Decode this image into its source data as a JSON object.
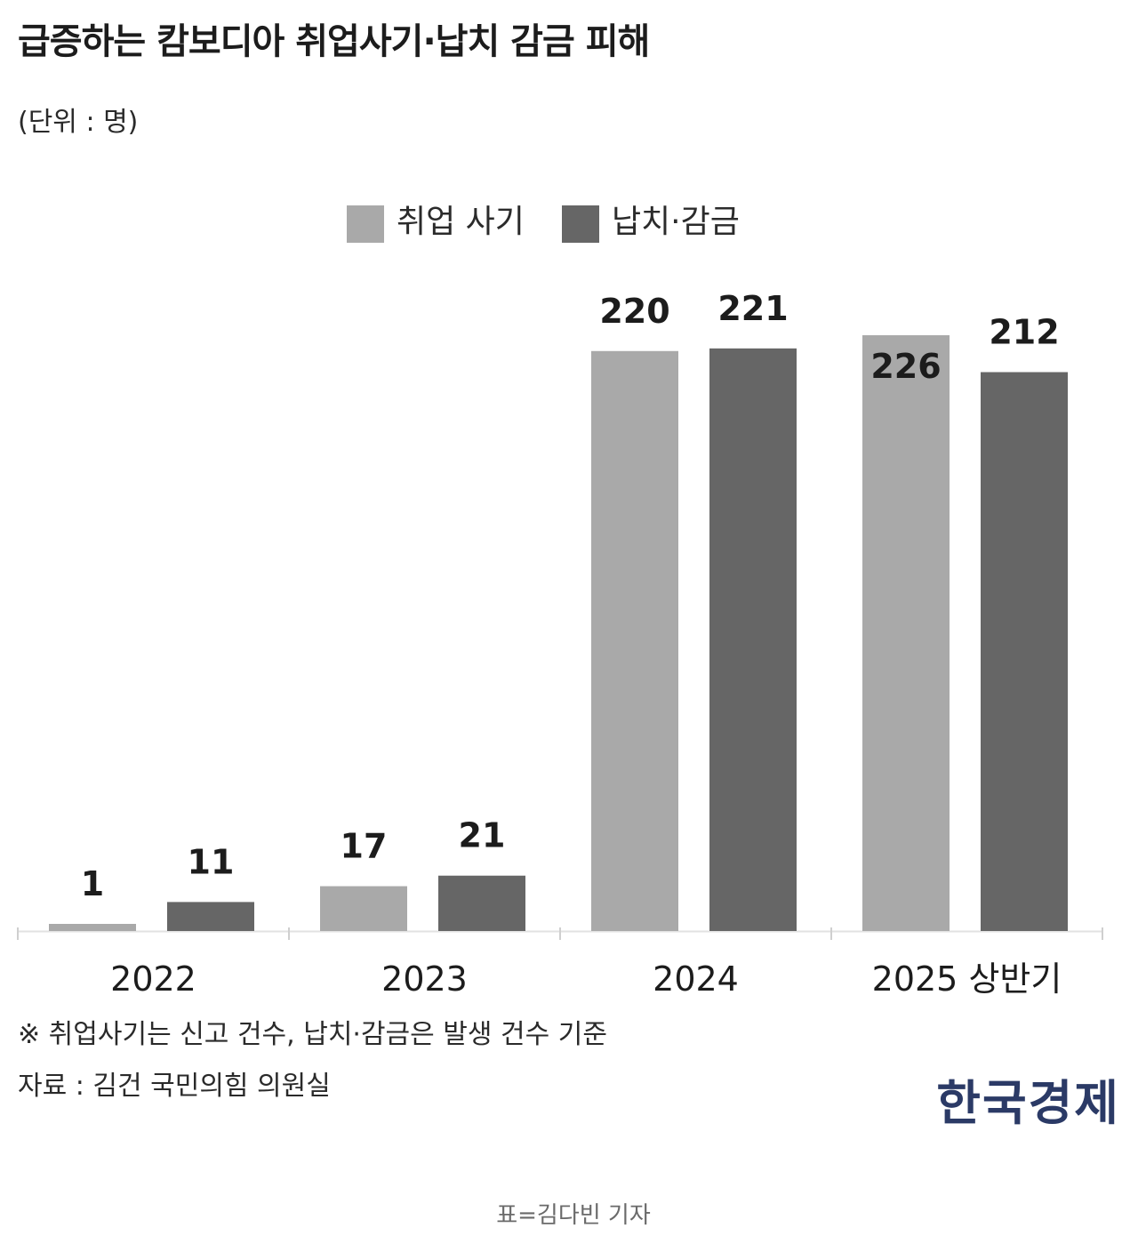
{
  "header": {
    "title": "급증하는 캄보디아 취업사기·납치 감금 피해",
    "unit": "(단위 : 명)"
  },
  "legend": [
    {
      "label": "취업 사기",
      "color": "#a9a9a9"
    },
    {
      "label": "납치·감금",
      "color": "#666666"
    }
  ],
  "chart_data": {
    "type": "bar",
    "categories": [
      "2022",
      "2023",
      "2024",
      "2025 상반기"
    ],
    "series": [
      {
        "name": "취업 사기",
        "values": [
          1,
          17,
          220,
          226
        ],
        "color": "#a9a9a9"
      },
      {
        "name": "납치·감금",
        "values": [
          11,
          21,
          221,
          212
        ],
        "color": "#666666"
      }
    ],
    "data_labels": [
      [
        "1",
        "17",
        "220",
        "226"
      ],
      [
        "11",
        "21",
        "221",
        "212"
      ]
    ],
    "ylim": [
      0,
      226
    ],
    "title": "급증하는 캄보디아 취업사기·납치 감금 피해",
    "ylabel": "명",
    "xlabel": "",
    "legend_position": "top-center"
  },
  "notes": {
    "footnote": "※ 취업사기는 신고 건수, 납치·감금은 발생 건수 기준",
    "source": "자료 : 김건 국민의힘 의원실"
  },
  "brand": {
    "logo": "한국경제"
  },
  "caption": "표=김다빈 기자"
}
